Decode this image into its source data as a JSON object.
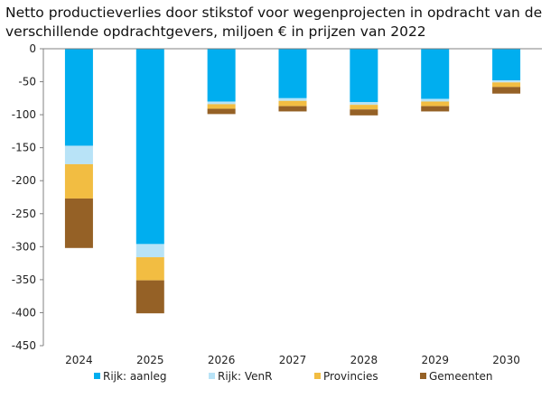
{
  "chart_data": {
    "type": "bar",
    "stacked": true,
    "title": "Netto productieverlies door stikstof voor wegenprojecten in opdracht van de verschillende opdrachtgevers, miljoen € in prijzen van 2022",
    "xlabel": "",
    "ylabel": "",
    "categories": [
      "2024",
      "2025",
      "2026",
      "2027",
      "2028",
      "2029",
      "2030"
    ],
    "ylim": [
      -450,
      0
    ],
    "yticks": [
      0,
      -50,
      -100,
      -150,
      -200,
      -250,
      -300,
      -350,
      -400,
      -450
    ],
    "grid": false,
    "legend_position": "bottom",
    "series": [
      {
        "name": "Rijk: aanleg",
        "color": "#00AEEF",
        "values": [
          -147,
          -296,
          -80,
          -75,
          -81,
          -76,
          -48
        ]
      },
      {
        "name": "Rijk: VenR",
        "color": "#B8E3F7",
        "values": [
          -28,
          -20,
          -4,
          -4,
          -4,
          -4,
          -3
        ]
      },
      {
        "name": "Provincies",
        "color": "#F2BD42",
        "values": [
          -52,
          -35,
          -7,
          -8,
          -7,
          -7,
          -7
        ]
      },
      {
        "name": "Gemeenten",
        "color": "#956126",
        "values": [
          -75,
          -50,
          -8,
          -8,
          -9,
          -8,
          -10
        ]
      }
    ]
  }
}
